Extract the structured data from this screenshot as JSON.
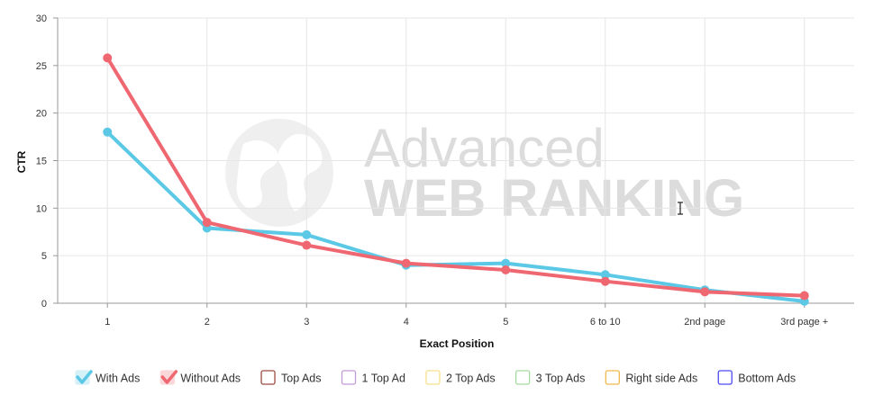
{
  "chart_data": {
    "type": "line",
    "xlabel": "Exact Position",
    "ylabel": "CTR",
    "ylim": [
      0,
      30
    ],
    "yticks": [
      0,
      5,
      10,
      15,
      20,
      25,
      30
    ],
    "grid": true,
    "categories": [
      "1",
      "2",
      "3",
      "4",
      "5",
      "6 to 10",
      "2nd page",
      "3rd page +"
    ],
    "series": [
      {
        "name": "With Ads",
        "color": "#5bc8e6",
        "values": [
          18.0,
          7.9,
          7.2,
          4.0,
          4.2,
          3.0,
          1.4,
          0.2
        ]
      },
      {
        "name": "Without Ads",
        "color": "#ef6771",
        "values": [
          25.8,
          8.5,
          6.1,
          4.2,
          3.5,
          2.3,
          1.2,
          0.8
        ]
      }
    ],
    "legend": {
      "placement": "bottom",
      "items": [
        {
          "label": "With Ads",
          "color": "#5bc8e6",
          "checked": true
        },
        {
          "label": "Without Ads",
          "color": "#ef6771",
          "checked": true
        },
        {
          "label": "Top Ads",
          "color": "#9b4b3f",
          "checked": false
        },
        {
          "label": "1 Top Ad",
          "color": "#c39bd3",
          "checked": false
        },
        {
          "label": "2 Top Ads",
          "color": "#f7e08a",
          "checked": false
        },
        {
          "label": "3 Top Ads",
          "color": "#a6dba0",
          "checked": false
        },
        {
          "label": "Right side Ads",
          "color": "#f0b84d",
          "checked": false
        },
        {
          "label": "Bottom Ads",
          "color": "#4a4af0",
          "checked": false
        }
      ]
    }
  },
  "watermark": {
    "line1": "Advanced",
    "line2": "WEB RANKING"
  }
}
